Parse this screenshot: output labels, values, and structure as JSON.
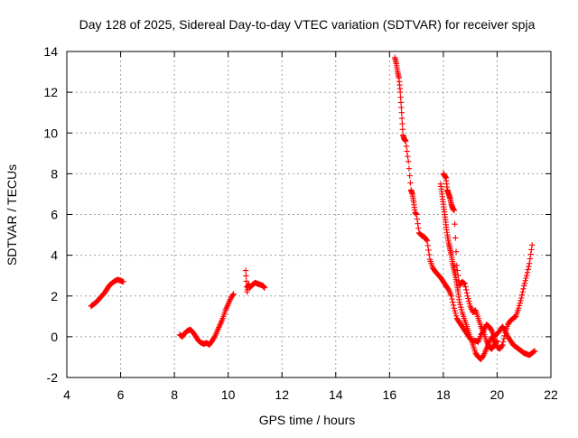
{
  "chart_data": {
    "type": "scatter",
    "title": "Day 128 of 2025, Sidereal Day-to-day VTEC variation (SDTVAR) for receiver spja",
    "xlabel": "GPS time / hours",
    "ylabel": "SDTVAR / TECUs",
    "xlim": [
      4,
      22
    ],
    "ylim": [
      -2,
      14
    ],
    "xticks": [
      4,
      6,
      8,
      10,
      12,
      14,
      16,
      18,
      20,
      22
    ],
    "yticks": [
      -2,
      0,
      2,
      4,
      6,
      8,
      10,
      12,
      14
    ],
    "xtick_labels": [
      "4",
      "6",
      "8",
      "10",
      "12",
      "14",
      "16",
      "18",
      "20",
      "22"
    ],
    "ytick_labels": [
      "-2",
      "0",
      "2",
      "4",
      "6",
      "8",
      "10",
      "12",
      "14"
    ],
    "grid": true,
    "legend": "none",
    "marker": "+",
    "marker_color": "#ff0000",
    "series": [
      {
        "name": "segment-1",
        "x": [
          4.9,
          5.0,
          5.1,
          5.2,
          5.3,
          5.4,
          5.5,
          5.6,
          5.7,
          5.8,
          5.9,
          6.0,
          6.1
        ],
        "y": [
          1.5,
          1.6,
          1.7,
          1.85,
          2.0,
          2.15,
          2.35,
          2.55,
          2.65,
          2.75,
          2.8,
          2.75,
          2.7
        ]
      },
      {
        "name": "segment-2",
        "x": [
          8.2,
          8.3,
          8.4,
          8.5,
          8.6,
          8.7,
          8.8,
          8.9,
          9.0,
          9.1,
          9.2,
          9.3,
          9.4,
          9.5,
          9.6,
          9.7,
          9.8,
          9.9,
          10.0,
          10.1,
          10.2
        ],
        "y": [
          0.1,
          0.0,
          0.2,
          0.3,
          0.35,
          0.2,
          0.0,
          -0.2,
          -0.3,
          -0.35,
          -0.3,
          -0.4,
          -0.2,
          0.0,
          0.3,
          0.6,
          0.9,
          1.3,
          1.6,
          1.9,
          2.1
        ]
      },
      {
        "name": "segment-3",
        "x": [
          10.65,
          10.7,
          10.75,
          10.8,
          10.9,
          11.0,
          11.1,
          11.2,
          11.3,
          11.35
        ],
        "y": [
          3.25,
          2.2,
          2.6,
          2.4,
          2.55,
          2.65,
          2.6,
          2.55,
          2.5,
          2.4
        ]
      },
      {
        "name": "segment-4",
        "x": [
          16.2,
          16.25,
          16.3,
          16.35,
          16.4,
          16.45,
          16.5,
          16.55,
          16.6,
          16.7,
          16.8,
          16.85,
          16.9,
          16.95,
          17.0,
          17.1,
          17.2,
          17.3,
          17.4,
          17.5,
          17.6,
          17.7,
          17.8,
          17.9,
          18.0,
          18.1,
          18.2,
          18.3,
          18.4,
          18.5,
          18.6,
          18.7,
          18.8,
          18.9,
          19.0,
          19.1,
          19.2,
          19.3,
          19.4,
          19.5,
          19.6,
          19.7,
          19.8,
          19.9,
          20.0,
          20.1,
          20.2,
          20.3,
          20.4,
          20.5,
          20.6,
          20.7,
          20.8,
          20.9,
          21.0,
          21.1,
          21.2,
          21.3,
          21.4
        ],
        "y": [
          13.7,
          13.4,
          13.0,
          12.7,
          12.0,
          11.0,
          9.9,
          9.7,
          9.6,
          8.6,
          7.2,
          7.0,
          6.6,
          6.1,
          6.0,
          5.1,
          4.95,
          4.9,
          4.7,
          3.8,
          3.4,
          3.2,
          3.05,
          2.9,
          2.7,
          2.5,
          2.3,
          2.0,
          1.4,
          0.9,
          0.7,
          0.5,
          0.3,
          0.1,
          -0.1,
          -0.2,
          -0.2,
          -0.25,
          0.1,
          0.3,
          0.6,
          0.5,
          0.3,
          0.0,
          0.15,
          0.3,
          0.5,
          0.3,
          0.0,
          -0.2,
          -0.4,
          -0.5,
          -0.6,
          -0.7,
          -0.8,
          -0.85,
          -0.9,
          -0.8,
          -0.7
        ]
      },
      {
        "name": "segment-5",
        "x": [
          17.9,
          17.95,
          18.0,
          18.05,
          18.1,
          18.15,
          18.2,
          18.25,
          18.3,
          18.35,
          18.4,
          18.45,
          18.5,
          18.55,
          18.6,
          18.7,
          18.8,
          18.9,
          19.0,
          19.1,
          19.2,
          19.3,
          19.4,
          19.5,
          19.6,
          19.7,
          19.8,
          19.9,
          20.0,
          20.1,
          20.2,
          20.3,
          20.4,
          20.5,
          20.6,
          20.7,
          20.8,
          20.9,
          21.0,
          21.1,
          21.2,
          21.3
        ],
        "y": [
          7.5,
          7.0,
          6.5,
          6.0,
          5.5,
          5.0,
          4.6,
          4.3,
          4.0,
          3.6,
          3.3,
          3.0,
          2.6,
          2.2,
          1.7,
          1.2,
          0.8,
          0.4,
          0.0,
          -0.4,
          -0.8,
          -1.0,
          -1.1,
          -0.9,
          -0.6,
          -0.3,
          0.0,
          -0.2,
          -0.5,
          -0.6,
          -0.4,
          0.2,
          0.6,
          0.8,
          0.9,
          1.0,
          1.4,
          1.9,
          2.5,
          3.0,
          3.6,
          4.5
        ]
      },
      {
        "name": "segment-6",
        "x": [
          18.0,
          18.05,
          18.1,
          18.15,
          18.2,
          18.25,
          18.3,
          18.35,
          18.4,
          18.5,
          18.6,
          18.7,
          18.8,
          18.9,
          19.0,
          19.1,
          19.2,
          19.3,
          19.4,
          19.5,
          19.6,
          19.7,
          19.8,
          19.9,
          20.0
        ],
        "y": [
          8.0,
          7.9,
          7.8,
          7.2,
          7.0,
          6.8,
          6.5,
          6.3,
          6.2,
          3.5,
          2.5,
          2.7,
          2.6,
          2.0,
          1.5,
          1.2,
          1.3,
          0.9,
          0.5,
          0.2,
          -0.2,
          -0.5,
          -0.6,
          -0.4,
          -0.2
        ]
      }
    ]
  }
}
